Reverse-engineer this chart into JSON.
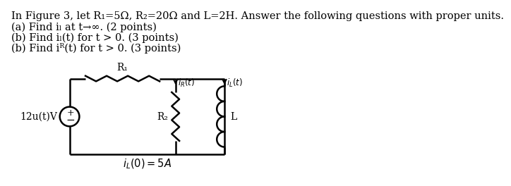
{
  "title_line": "In Figure 3, let R₁=5Ω, R₂=20Ω and L=2H. Answer the following questions with proper units.",
  "line_a": "(a) Find iₗ at t→∞. (2 points)",
  "line_b1": "(b) Find iₗ(t) for t > 0. (3 points)",
  "line_b2": "(b) Find iᴿ(t) for t > 0. (3 points)",
  "label_voltage": "12u(t)V",
  "label_R1": "R₁",
  "label_R2": "R₂",
  "label_L": "L",
  "bg_color": "#ffffff",
  "text_color": "#000000",
  "line_color": "#000000",
  "font_size_title": 10.5,
  "font_size_body": 10.5,
  "font_size_circuit": 10
}
